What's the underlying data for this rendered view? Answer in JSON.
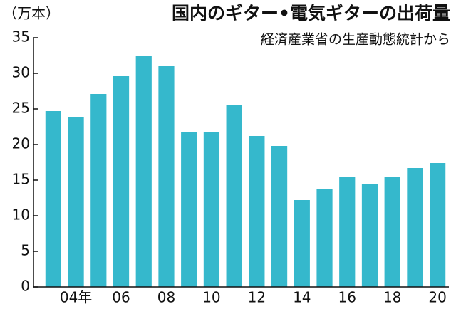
{
  "chart_data": {
    "type": "bar",
    "title": "国内のギター•電気ギターの出荷量",
    "subtitle": "経済産業省の生産動態統計から",
    "y_axis_label": "（万本）",
    "categories": [
      null,
      "04年",
      null,
      "06",
      null,
      "08",
      null,
      "10",
      null,
      "12",
      null,
      "14",
      null,
      "16",
      null,
      "18",
      null,
      "20"
    ],
    "values": [
      24.7,
      23.8,
      27.1,
      29.6,
      32.5,
      31.1,
      21.8,
      21.7,
      25.6,
      21.2,
      19.8,
      12.2,
      13.7,
      15.5,
      14.4,
      15.4,
      16.7,
      17.4
    ],
    "color": "#35b8cc",
    "ylim": [
      0,
      35
    ],
    "yticks": [
      0,
      5,
      10,
      15,
      20,
      25,
      30,
      35
    ],
    "grid": false
  }
}
